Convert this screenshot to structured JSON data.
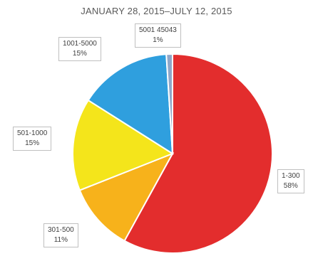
{
  "chart_data": {
    "type": "pie",
    "title": "JANUARY 28, 2015–JULY 12, 2015",
    "slices": [
      {
        "label": "1-300",
        "value": 58,
        "value_label": "58%",
        "color": "#e32d2d"
      },
      {
        "label": "301-500",
        "value": 11,
        "value_label": "11%",
        "color": "#f7b21b"
      },
      {
        "label": "501-1000",
        "value": 15,
        "value_label": "15%",
        "color": "#f4e51b"
      },
      {
        "label": "1001-5000",
        "value": 15,
        "value_label": "15%",
        "color": "#2f9fde"
      },
      {
        "label": "5001 45043",
        "value": 1,
        "value_label": "1%",
        "color": "#8fa7c9"
      }
    ],
    "start_angle_deg": 0,
    "direction": "clockwise",
    "grid": false,
    "legend": "none"
  }
}
